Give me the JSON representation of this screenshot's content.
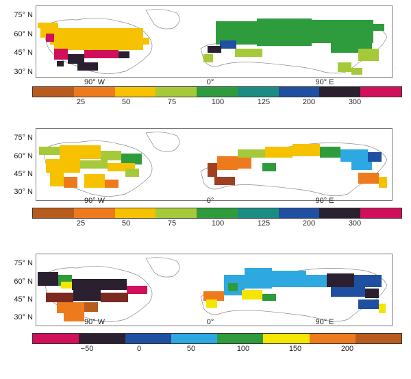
{
  "latitude_labels": [
    "75° N",
    "60° N",
    "45° N",
    "30° N"
  ],
  "longitude_labels": [
    "90° W",
    "0°",
    "90° E"
  ],
  "panels": [
    {
      "side_label": "...",
      "colorbar": {
        "colors": [
          "#b85c1e",
          "#ee7a1e",
          "#f6c200",
          "#a6c93a",
          "#2e9c3c",
          "#1a8c84",
          "#1f4fa0",
          "#2a2030",
          "#d0105a"
        ],
        "ticks": [
          "25",
          "50",
          "75",
          "100",
          "125",
          "200",
          "300"
        ]
      }
    },
    {
      "side_label": "...",
      "colorbar": {
        "colors": [
          "#b85c1e",
          "#ee7a1e",
          "#f6c200",
          "#a6c93a",
          "#2e9c3c",
          "#1a8c84",
          "#1f4fa0",
          "#2a2030",
          "#d0105a"
        ],
        "ticks": [
          "25",
          "50",
          "75",
          "100",
          "125",
          "200",
          "300"
        ]
      }
    },
    {
      "side_label": "...",
      "colorbar": {
        "colors": [
          "#d0105a",
          "#2a2030",
          "#1f4fa0",
          "#2ea8e0",
          "#2e9c3c",
          "#f4e600",
          "#ee7a1e",
          "#b85c1e"
        ],
        "ticks": [
          "−50",
          "0",
          "50",
          "100",
          "150",
          "200"
        ]
      }
    }
  ]
}
